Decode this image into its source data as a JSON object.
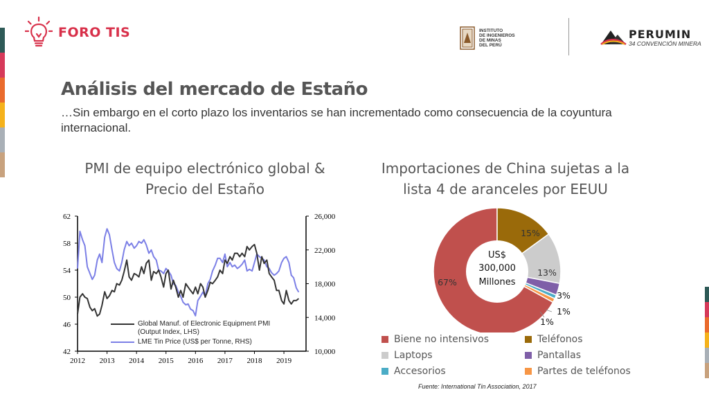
{
  "header": {
    "brand_name": "FORO TIS",
    "institute_lines": [
      "INSTITUTO",
      "DE INGENIEROS",
      "DE MINAS",
      "DEL PERÚ"
    ],
    "event_name": "PERUMIN",
    "event_subtitle": "34 CONVENCIÓN MINERA",
    "colors": {
      "brand": "#d8304a"
    }
  },
  "stripes": [
    "#2e5a57",
    "#d63a5a",
    "#ea6b2d",
    "#f5b21c",
    "#a9b0b7",
    "#c8a27e"
  ],
  "title": "Análisis del mercado de Estaño",
  "subtitle": "…Sin embargo en el corto plazo los inventarios se han incrementado como consecuencia de la coyuntura internacional.",
  "source": "Fuente: International Tin Association, 2017",
  "chart_data": [
    {
      "type": "line",
      "title": "PMI de equipo electrónico global & Precio del Estaño",
      "x_ticks": [
        "2012",
        "2013",
        "2014",
        "2015",
        "2016",
        "2017",
        "2018",
        "2019"
      ],
      "xlim": [
        2012,
        2019.75
      ],
      "y_left": {
        "ticks": [
          "62",
          "58",
          "54",
          "50",
          "46",
          "42"
        ],
        "ylim": [
          42,
          62
        ]
      },
      "y_right": {
        "ticks": [
          "26,000",
          "22,000",
          "18,000",
          "14,000",
          "10,000"
        ],
        "ylim": [
          10000,
          26000
        ]
      },
      "series": [
        {
          "name": "Global Manuf. of Electronic Equipment PMI (Output Index, LHS)",
          "name_lines": [
            "Global Manuf. of Electronic Equipment PMI",
            "(Output Index, LHS)"
          ],
          "axis": "left",
          "color": "#333333",
          "x": [
            2012.0,
            2012.08,
            2012.17,
            2012.25,
            2012.33,
            2012.42,
            2012.5,
            2012.58,
            2012.67,
            2012.75,
            2012.83,
            2012.92,
            2013.0,
            2013.08,
            2013.17,
            2013.25,
            2013.33,
            2013.42,
            2013.5,
            2013.58,
            2013.67,
            2013.75,
            2013.83,
            2013.92,
            2014.0,
            2014.08,
            2014.17,
            2014.25,
            2014.33,
            2014.42,
            2014.5,
            2014.58,
            2014.67,
            2014.75,
            2014.83,
            2014.92,
            2015.0,
            2015.08,
            2015.17,
            2015.25,
            2015.33,
            2015.42,
            2015.5,
            2015.58,
            2015.67,
            2015.75,
            2015.83,
            2015.92,
            2016.0,
            2016.08,
            2016.17,
            2016.25,
            2016.33,
            2016.42,
            2016.5,
            2016.58,
            2016.67,
            2016.75,
            2016.83,
            2016.92,
            2017.0,
            2017.08,
            2017.17,
            2017.25,
            2017.33,
            2017.42,
            2017.5,
            2017.58,
            2017.67,
            2017.75,
            2017.83,
            2017.92,
            2018.0,
            2018.08,
            2018.17,
            2018.25,
            2018.33,
            2018.42,
            2018.5,
            2018.58,
            2018.67,
            2018.75,
            2018.83,
            2018.92,
            2019.0,
            2019.08,
            2019.17,
            2019.25,
            2019.33,
            2019.42,
            2019.5
          ],
          "values": [
            47.5,
            50.0,
            50.5,
            50.0,
            49.8,
            48.5,
            48.0,
            48.3,
            47.2,
            47.5,
            48.8,
            50.8,
            49.8,
            50.2,
            51.0,
            50.8,
            52.0,
            51.8,
            52.5,
            53.8,
            55.5,
            53.0,
            52.5,
            53.5,
            53.3,
            53.0,
            54.5,
            53.5,
            55.0,
            55.5,
            52.5,
            53.8,
            53.5,
            54.0,
            53.0,
            51.5,
            53.5,
            54.0,
            51.2,
            52.5,
            51.5,
            50.0,
            51.0,
            50.0,
            52.0,
            51.5,
            51.0,
            50.5,
            51.5,
            50.5,
            52.0,
            51.5,
            50.0,
            51.0,
            52.2,
            52.0,
            52.5,
            53.0,
            54.0,
            53.5,
            55.5,
            55.0,
            56.0,
            55.5,
            56.5,
            56.5,
            56.0,
            56.5,
            56.0,
            57.5,
            57.0,
            57.5,
            57.8,
            56.5,
            54.0,
            56.0,
            55.0,
            55.5,
            53.5,
            53.0,
            52.5,
            51.0,
            51.0,
            49.5,
            49.0,
            51.0,
            49.5,
            49.0,
            49.5,
            49.5,
            49.8
          ]
        },
        {
          "name": "LME Tin Price (US$ per Tonne, RHS)",
          "name_lines": [
            "LME Tin Price (US$ per Tonne, RHS)"
          ],
          "axis": "right",
          "color": "#7b7fe6",
          "x": [
            2012.0,
            2012.08,
            2012.17,
            2012.25,
            2012.33,
            2012.42,
            2012.5,
            2012.58,
            2012.67,
            2012.75,
            2012.83,
            2012.92,
            2013.0,
            2013.08,
            2013.17,
            2013.25,
            2013.33,
            2013.42,
            2013.5,
            2013.58,
            2013.67,
            2013.75,
            2013.83,
            2013.92,
            2014.0,
            2014.08,
            2014.17,
            2014.25,
            2014.33,
            2014.42,
            2014.5,
            2014.58,
            2014.67,
            2014.75,
            2014.83,
            2014.92,
            2015.0,
            2015.08,
            2015.17,
            2015.25,
            2015.33,
            2015.42,
            2015.5,
            2015.58,
            2015.67,
            2015.75,
            2015.83,
            2015.92,
            2016.0,
            2016.08,
            2016.17,
            2016.25,
            2016.33,
            2016.42,
            2016.5,
            2016.58,
            2016.67,
            2016.75,
            2016.83,
            2016.92,
            2017.0,
            2017.08,
            2017.17,
            2017.25,
            2017.33,
            2017.42,
            2017.5,
            2017.58,
            2017.67,
            2017.75,
            2017.83,
            2017.92,
            2018.0,
            2018.08,
            2018.17,
            2018.25,
            2018.33,
            2018.42,
            2018.5,
            2018.58,
            2018.67,
            2018.75,
            2018.83,
            2018.92,
            2019.0,
            2019.08,
            2019.17,
            2019.25,
            2019.33,
            2019.42,
            2019.5
          ],
          "values": [
            19800,
            24200,
            23200,
            22500,
            20000,
            19200,
            18500,
            19000,
            20800,
            21500,
            20500,
            23500,
            24500,
            23800,
            22000,
            20500,
            19800,
            19500,
            20500,
            22000,
            23000,
            22500,
            22800,
            22200,
            22500,
            23000,
            22800,
            23200,
            22600,
            21600,
            22000,
            21200,
            20800,
            19600,
            19500,
            19200,
            19800,
            19500,
            19000,
            18000,
            17800,
            17000,
            16500,
            15800,
            15500,
            15600,
            15000,
            14800,
            14200,
            16000,
            16500,
            17000,
            16500,
            18000,
            18500,
            19500,
            20200,
            21000,
            21000,
            20500,
            21500,
            20000,
            20500,
            20000,
            20200,
            19800,
            20000,
            20300,
            20800,
            19500,
            19700,
            19500,
            20500,
            21500,
            21200,
            21000,
            20800,
            20000,
            19800,
            19300,
            19000,
            19200,
            19500,
            20500,
            21000,
            21200,
            20500,
            19000,
            18700,
            17500,
            17000
          ]
        }
      ]
    },
    {
      "type": "pie",
      "title": "Importaciones de China sujetas a la lista 4 de aranceles por EEUU",
      "center_text": [
        "US$",
        "300,000",
        "Millones"
      ],
      "categories": [
        "Biene no intensivos",
        "Teléfonos",
        "Laptops",
        "Pantallas",
        "Accesorios",
        "Partes de teléfonos"
      ],
      "values": [
        67,
        15,
        13,
        3,
        1,
        1
      ],
      "labels": [
        "67%",
        "15%",
        "13%",
        "3%",
        "1%",
        "1%"
      ],
      "colors": [
        "#c0504d",
        "#9a6a0a",
        "#cccccc",
        "#7f5fa8",
        "#4bacc6",
        "#f79646"
      ],
      "legend_position": "bottom"
    }
  ]
}
